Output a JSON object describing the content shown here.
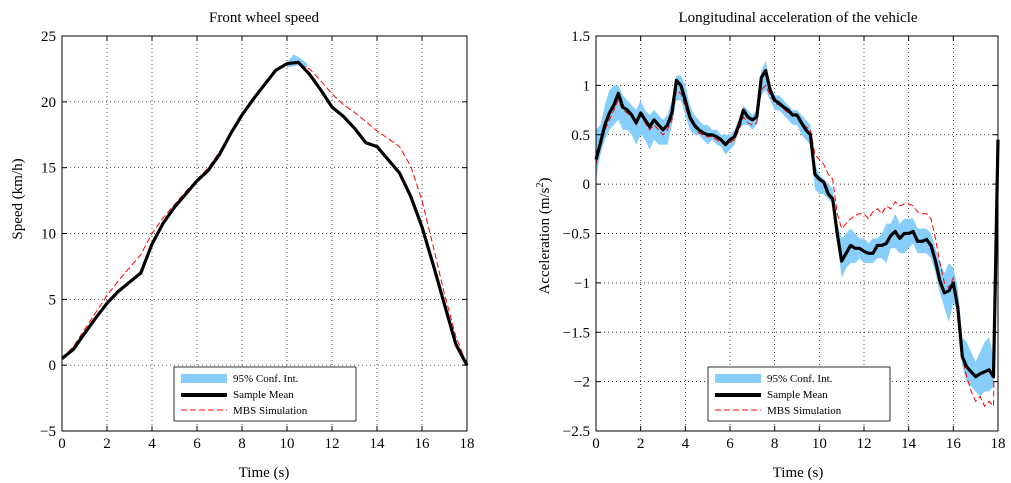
{
  "chart_data": [
    {
      "type": "line",
      "title": "Front wheel speed",
      "xlabel": "Time (s)",
      "ylabel": "Speed (km/h)",
      "xlim": [
        0,
        18
      ],
      "ylim": [
        -5,
        25
      ],
      "xticks": [
        0,
        2,
        4,
        6,
        8,
        10,
        12,
        14,
        16,
        18
      ],
      "yticks": [
        -5,
        0,
        5,
        10,
        15,
        20,
        25
      ],
      "grid": true,
      "legend_position": "bottom-center",
      "legend": [
        "95% Conf. Int.",
        "Sample Mean",
        "MBS Simulation"
      ],
      "colors": {
        "band": "#87cefa",
        "mean": "#000000",
        "sim": "#ff0000"
      },
      "band": {
        "x": [
          10.0,
          10.3,
          10.6,
          10.9
        ],
        "lower": [
          22.6,
          22.7,
          22.8,
          22.6
        ],
        "upper": [
          23.0,
          23.6,
          23.3,
          22.9
        ]
      },
      "series": [
        {
          "name": "Sample Mean",
          "x": [
            0,
            0.5,
            1,
            1.5,
            2,
            2.5,
            3,
            3.5,
            4,
            4.5,
            5,
            5.5,
            6,
            6.5,
            7,
            7.5,
            8,
            8.5,
            9,
            9.5,
            10,
            10.5,
            11,
            11.5,
            12,
            12.5,
            13,
            13.5,
            14,
            14.5,
            15,
            15.5,
            16,
            16.5,
            17,
            17.5,
            18
          ],
          "y": [
            0.5,
            1.2,
            2.4,
            3.6,
            4.7,
            5.6,
            6.3,
            7.0,
            9.2,
            10.8,
            12.0,
            13.0,
            14.0,
            14.8,
            16.0,
            17.6,
            19.0,
            20.2,
            21.3,
            22.4,
            22.9,
            23.0,
            22.1,
            20.9,
            19.6,
            18.9,
            18.0,
            16.9,
            16.6,
            15.6,
            14.6,
            12.8,
            10.5,
            7.6,
            4.6,
            1.6,
            0.0
          ]
        },
        {
          "name": "MBS Simulation",
          "x": [
            0,
            0.5,
            1,
            1.5,
            2,
            2.5,
            3,
            3.5,
            4,
            4.5,
            5,
            5.5,
            6,
            6.5,
            7,
            7.5,
            8,
            8.5,
            9,
            9.5,
            10,
            10.5,
            11,
            11.5,
            12,
            12.5,
            13,
            13.5,
            14,
            14.5,
            15,
            15.5,
            16,
            16.5,
            17,
            17.5,
            18
          ],
          "y": [
            0.5,
            1.4,
            2.7,
            4.0,
            5.3,
            6.4,
            7.4,
            8.4,
            10.0,
            11.2,
            12.2,
            13.2,
            14.1,
            15.0,
            16.2,
            17.6,
            19.1,
            20.3,
            21.4,
            22.4,
            23.0,
            22.9,
            22.5,
            21.6,
            20.6,
            19.8,
            19.2,
            18.5,
            17.8,
            17.2,
            16.6,
            15.1,
            12.5,
            9.0,
            5.4,
            2.2,
            0.0
          ]
        }
      ]
    },
    {
      "type": "line",
      "title": "Longitudinal acceleration of the vehicle",
      "xlabel": "Time (s)",
      "ylabel": "Acceleration (m/s²)",
      "xlim": [
        0,
        18
      ],
      "ylim": [
        -2.5,
        1.5
      ],
      "xticks": [
        0,
        2,
        4,
        6,
        8,
        10,
        12,
        14,
        16,
        18
      ],
      "yticks": [
        -2.5,
        -2,
        -1.5,
        -1,
        -0.5,
        0,
        0.5,
        1,
        1.5
      ],
      "grid": true,
      "legend_position": "bottom-center",
      "legend": [
        "95% Conf. Int.",
        "Sample Mean",
        "MBS Simulation"
      ],
      "colors": {
        "band": "#87cefa",
        "mean": "#000000",
        "sim": "#ff0000"
      },
      "band": {
        "x": [
          0,
          0.2,
          0.4,
          0.6,
          0.8,
          1.0,
          1.2,
          1.4,
          1.6,
          1.8,
          2.0,
          2.2,
          2.4,
          2.6,
          2.8,
          3.0,
          3.2,
          3.4,
          3.6,
          3.8,
          4.0,
          4.2,
          4.4,
          4.6,
          4.8,
          5.0,
          5.2,
          5.4,
          5.6,
          5.8,
          6.0,
          6.2,
          6.4,
          6.6,
          6.8,
          7.0,
          7.2,
          7.4,
          7.6,
          7.8,
          8.0,
          8.2,
          8.4,
          8.6,
          8.8,
          9.0,
          9.2,
          9.4,
          9.6,
          9.8,
          10.0,
          10.2,
          10.4,
          10.6,
          10.8,
          11.0,
          11.2,
          11.4,
          11.6,
          11.8,
          12.0,
          12.2,
          12.4,
          12.6,
          12.8,
          13.0,
          13.2,
          13.4,
          13.6,
          13.8,
          14.0,
          14.2,
          14.4,
          14.6,
          14.8,
          15.0,
          15.2,
          15.4,
          15.6,
          15.8,
          16.0,
          16.2,
          16.4,
          16.6,
          16.8,
          17.0,
          17.2,
          17.4,
          17.6,
          17.8,
          18.0
        ],
        "lower": [
          0.05,
          0.3,
          0.45,
          0.55,
          0.6,
          0.65,
          0.55,
          0.55,
          0.5,
          0.4,
          0.5,
          0.45,
          0.35,
          0.45,
          0.4,
          0.4,
          0.4,
          0.6,
          0.85,
          0.85,
          0.7,
          0.55,
          0.5,
          0.5,
          0.45,
          0.4,
          0.45,
          0.4,
          0.38,
          0.3,
          0.35,
          0.4,
          0.55,
          0.6,
          0.6,
          0.55,
          0.6,
          0.9,
          0.95,
          0.85,
          0.75,
          0.75,
          0.7,
          0.65,
          0.6,
          0.6,
          0.5,
          0.45,
          0.4,
          -0.05,
          -0.1,
          -0.1,
          -0.15,
          -0.2,
          -0.6,
          -0.95,
          -0.85,
          -0.8,
          -0.8,
          -0.75,
          -0.8,
          -0.8,
          -0.8,
          -0.75,
          -0.75,
          -0.8,
          -0.65,
          -0.65,
          -0.7,
          -0.7,
          -0.65,
          -0.6,
          -0.7,
          -0.7,
          -0.7,
          -0.75,
          -0.9,
          -1.1,
          -1.25,
          -1.4,
          -1.2,
          -1.3,
          -1.85,
          -2.0,
          -2.05,
          -2.1,
          -2.15,
          -2.1,
          -2.1,
          -2.05,
          0.4
        ],
        "upper": [
          0.55,
          0.6,
          0.8,
          0.95,
          1.0,
          1.0,
          0.9,
          0.85,
          0.8,
          0.75,
          0.85,
          0.75,
          0.7,
          0.75,
          0.7,
          0.65,
          0.7,
          0.85,
          1.1,
          1.1,
          1.0,
          0.8,
          0.7,
          0.65,
          0.6,
          0.6,
          0.55,
          0.55,
          0.5,
          0.5,
          0.5,
          0.55,
          0.65,
          0.8,
          0.75,
          0.7,
          0.75,
          1.15,
          1.25,
          1.0,
          0.9,
          0.9,
          0.85,
          0.8,
          0.75,
          0.75,
          0.7,
          0.65,
          0.6,
          0.2,
          0.1,
          0.05,
          0.0,
          -0.05,
          -0.4,
          -0.55,
          -0.5,
          -0.45,
          -0.5,
          -0.55,
          -0.55,
          -0.6,
          -0.55,
          -0.55,
          -0.5,
          -0.4,
          -0.4,
          -0.3,
          -0.4,
          -0.35,
          -0.35,
          -0.35,
          -0.45,
          -0.45,
          -0.45,
          -0.5,
          -0.65,
          -0.8,
          -0.9,
          -0.8,
          -0.85,
          -1.05,
          -1.55,
          -1.6,
          -1.7,
          -1.8,
          -1.7,
          -1.6,
          -1.55,
          -1.75,
          0.55
        ]
      },
      "series": [
        {
          "name": "Sample Mean",
          "x": [
            0,
            0.2,
            0.4,
            0.6,
            0.8,
            1.0,
            1.2,
            1.4,
            1.6,
            1.8,
            2.0,
            2.2,
            2.4,
            2.6,
            2.8,
            3.0,
            3.2,
            3.4,
            3.6,
            3.8,
            4.0,
            4.2,
            4.4,
            4.6,
            4.8,
            5.0,
            5.2,
            5.4,
            5.6,
            5.8,
            6.0,
            6.2,
            6.4,
            6.6,
            6.8,
            7.0,
            7.2,
            7.4,
            7.6,
            7.8,
            8.0,
            8.2,
            8.4,
            8.6,
            8.8,
            9.0,
            9.2,
            9.4,
            9.6,
            9.8,
            10.0,
            10.2,
            10.4,
            10.6,
            10.8,
            11.0,
            11.2,
            11.4,
            11.6,
            11.8,
            12.0,
            12.2,
            12.4,
            12.6,
            12.8,
            13.0,
            13.2,
            13.4,
            13.6,
            13.8,
            14.0,
            14.2,
            14.4,
            14.6,
            14.8,
            15.0,
            15.2,
            15.4,
            15.6,
            15.8,
            16.0,
            16.2,
            16.4,
            16.6,
            16.8,
            17.0,
            17.2,
            17.4,
            17.6,
            17.8,
            18.0
          ],
          "y": [
            0.25,
            0.42,
            0.6,
            0.72,
            0.8,
            0.92,
            0.78,
            0.75,
            0.7,
            0.62,
            0.72,
            0.65,
            0.58,
            0.65,
            0.6,
            0.55,
            0.6,
            0.72,
            1.05,
            1.0,
            0.85,
            0.68,
            0.6,
            0.55,
            0.52,
            0.5,
            0.5,
            0.48,
            0.45,
            0.4,
            0.45,
            0.48,
            0.6,
            0.75,
            0.68,
            0.65,
            0.68,
            1.08,
            1.15,
            0.95,
            0.85,
            0.82,
            0.78,
            0.75,
            0.7,
            0.7,
            0.62,
            0.55,
            0.5,
            0.1,
            0.05,
            0.02,
            -0.1,
            -0.15,
            -0.5,
            -0.78,
            -0.7,
            -0.62,
            -0.65,
            -0.65,
            -0.68,
            -0.7,
            -0.7,
            -0.62,
            -0.62,
            -0.6,
            -0.52,
            -0.48,
            -0.55,
            -0.5,
            -0.5,
            -0.48,
            -0.58,
            -0.58,
            -0.56,
            -0.62,
            -0.78,
            -0.98,
            -1.1,
            -1.08,
            -1.0,
            -1.25,
            -1.75,
            -1.85,
            -1.9,
            -1.95,
            -1.92,
            -1.9,
            -1.88,
            -1.95,
            0.45
          ]
        },
        {
          "name": "MBS Simulation",
          "x": [
            0,
            0.2,
            0.4,
            0.6,
            0.8,
            1.0,
            1.2,
            1.4,
            1.6,
            1.8,
            2.0,
            2.2,
            2.4,
            2.6,
            2.8,
            3.0,
            3.2,
            3.4,
            3.6,
            3.8,
            4.0,
            4.2,
            4.4,
            4.6,
            4.8,
            5.0,
            5.2,
            5.4,
            5.6,
            5.8,
            6.0,
            6.2,
            6.4,
            6.6,
            6.8,
            7.0,
            7.2,
            7.4,
            7.6,
            7.8,
            8.0,
            8.2,
            8.4,
            8.6,
            8.8,
            9.0,
            9.2,
            9.4,
            9.6,
            9.8,
            10.0,
            10.2,
            10.4,
            10.6,
            10.8,
            11.0,
            11.2,
            11.4,
            11.6,
            11.8,
            12.0,
            12.2,
            12.4,
            12.6,
            12.8,
            13.0,
            13.2,
            13.4,
            13.6,
            13.8,
            14.0,
            14.2,
            14.4,
            14.6,
            14.8,
            15.0,
            15.2,
            15.4,
            15.6,
            15.8,
            16.0,
            16.2,
            16.4,
            16.6,
            16.8,
            17.0,
            17.2,
            17.4,
            17.6,
            17.8,
            18.0
          ],
          "y": [
            0.2,
            0.38,
            0.55,
            0.65,
            0.75,
            0.85,
            0.75,
            0.72,
            0.68,
            0.6,
            0.7,
            0.62,
            0.55,
            0.6,
            0.55,
            0.5,
            0.55,
            0.65,
            0.95,
            0.92,
            0.78,
            0.65,
            0.58,
            0.52,
            0.5,
            0.48,
            0.48,
            0.45,
            0.42,
            0.4,
            0.42,
            0.45,
            0.55,
            0.68,
            0.62,
            0.6,
            0.62,
            0.95,
            1.0,
            0.9,
            0.82,
            0.8,
            0.76,
            0.72,
            0.7,
            0.7,
            0.62,
            0.58,
            0.55,
            0.3,
            0.25,
            0.2,
            0.1,
            0.05,
            -0.3,
            -0.45,
            -0.4,
            -0.35,
            -0.32,
            -0.3,
            -0.3,
            -0.35,
            -0.28,
            -0.25,
            -0.3,
            -0.22,
            -0.25,
            -0.18,
            -0.22,
            -0.2,
            -0.2,
            -0.22,
            -0.28,
            -0.3,
            -0.3,
            -0.35,
            -0.55,
            -0.8,
            -1.0,
            -1.05,
            -0.95,
            -1.2,
            -1.75,
            -1.95,
            -2.1,
            -2.2,
            -2.15,
            -2.25,
            -2.2,
            -2.25,
            0.35
          ]
        }
      ]
    }
  ]
}
